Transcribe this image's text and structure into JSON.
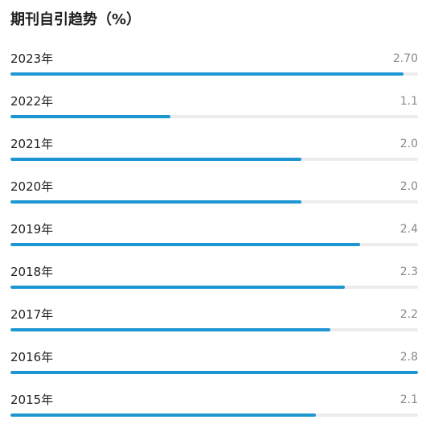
{
  "header": {
    "title": "期刊自引趋势（%）"
  },
  "colors": {
    "bar": "#1d96d2",
    "track": "#ececec"
  },
  "chart_data": {
    "type": "bar",
    "orientation": "horizontal",
    "title": "期刊自引趋势（%）",
    "categories": [
      "2023年",
      "2022年",
      "2021年",
      "2020年",
      "2019年",
      "2018年",
      "2017年",
      "2016年",
      "2015年"
    ],
    "labels": [
      "2.70",
      "1.1",
      "2.0",
      "2.0",
      "2.4",
      "2.3",
      "2.2",
      "2.8",
      "2.1"
    ],
    "values": [
      2.7,
      1.1,
      2.0,
      2.0,
      2.4,
      2.3,
      2.2,
      2.8,
      2.1
    ],
    "xlim": [
      0,
      2.8
    ],
    "grid": false,
    "legend": "none"
  }
}
